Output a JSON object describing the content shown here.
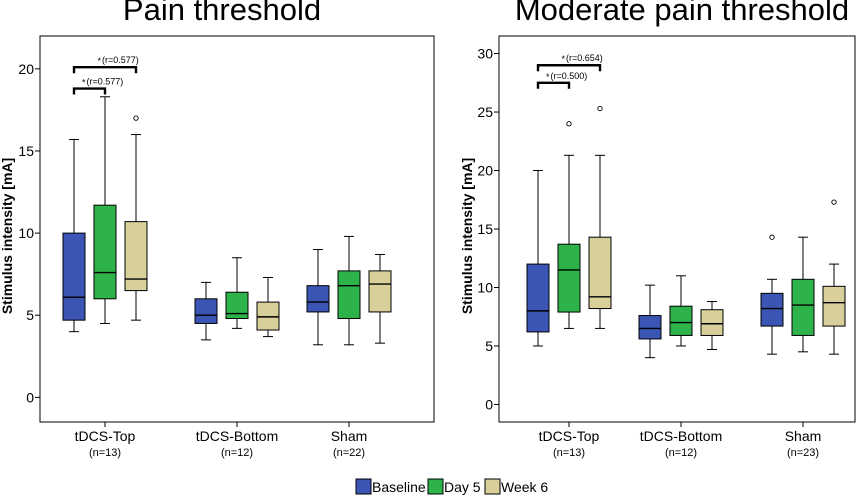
{
  "legend": [
    {
      "name": "Baseline",
      "color": "#3a55b4"
    },
    {
      "name": "Day 5",
      "color": "#2db34a"
    },
    {
      "name": "Week 6",
      "color": "#d9cf9a"
    }
  ],
  "chart_data": [
    {
      "type": "boxplot",
      "title": "Pain threshold",
      "ylabel": "Stimulus intensity [mA]",
      "xlabel": "",
      "ylim": [
        -1.5,
        22
      ],
      "yticks": [
        0,
        5,
        10,
        15,
        20
      ],
      "groups": [
        {
          "label": "tDCS-Top",
          "n": "(n=13)",
          "boxes": [
            {
              "series": "Baseline",
              "whisker_low": 4.0,
              "q1": 4.7,
              "median": 6.1,
              "q3": 10.0,
              "whisker_high": 15.7,
              "outliers": []
            },
            {
              "series": "Day 5",
              "whisker_low": 4.5,
              "q1": 6.0,
              "median": 7.6,
              "q3": 11.7,
              "whisker_high": 18.3,
              "outliers": []
            },
            {
              "series": "Week 6",
              "whisker_low": 4.7,
              "q1": 6.5,
              "median": 7.2,
              "q3": 10.7,
              "whisker_high": 16.0,
              "outliers": [
                17.0
              ]
            }
          ]
        },
        {
          "label": "tDCS-Bottom",
          "n": "(n=12)",
          "boxes": [
            {
              "series": "Baseline",
              "whisker_low": 3.5,
              "q1": 4.5,
              "median": 5.0,
              "q3": 6.0,
              "whisker_high": 7.0,
              "outliers": []
            },
            {
              "series": "Day 5",
              "whisker_low": 4.2,
              "q1": 4.8,
              "median": 5.1,
              "q3": 6.4,
              "whisker_high": 8.5,
              "outliers": []
            },
            {
              "series": "Week 6",
              "whisker_low": 3.7,
              "q1": 4.1,
              "median": 4.9,
              "q3": 5.8,
              "whisker_high": 7.3,
              "outliers": []
            }
          ]
        },
        {
          "label": "Sham",
          "n": "(n=22)",
          "boxes": [
            {
              "series": "Baseline",
              "whisker_low": 3.2,
              "q1": 5.2,
              "median": 5.8,
              "q3": 6.8,
              "whisker_high": 9.0,
              "outliers": []
            },
            {
              "series": "Day 5",
              "whisker_low": 3.2,
              "q1": 4.8,
              "median": 6.8,
              "q3": 7.7,
              "whisker_high": 9.8,
              "outliers": []
            },
            {
              "series": "Week 6",
              "whisker_low": 3.3,
              "q1": 5.2,
              "median": 6.9,
              "q3": 7.7,
              "whisker_high": 8.7,
              "outliers": []
            }
          ]
        }
      ],
      "significance": [
        {
          "label": "(r=0.577)",
          "from_box": 0,
          "to_box": 2,
          "y": 20.1
        },
        {
          "label": "(r=0.577)",
          "from_box": 0,
          "to_box": 1,
          "y": 18.8
        }
      ]
    },
    {
      "type": "boxplot",
      "title": "Moderate pain threshold",
      "ylabel": "Stimulus intensity [mA]",
      "xlabel": "",
      "ylim": [
        -1.5,
        31.5
      ],
      "yticks": [
        0,
        5,
        10,
        15,
        20,
        25,
        30
      ],
      "groups": [
        {
          "label": "tDCS-Top",
          "n": "(n=13)",
          "boxes": [
            {
              "series": "Baseline",
              "whisker_low": 5.0,
              "q1": 6.2,
              "median": 8.0,
              "q3": 12.0,
              "whisker_high": 20.0,
              "outliers": []
            },
            {
              "series": "Day 5",
              "whisker_low": 6.5,
              "q1": 7.9,
              "median": 11.5,
              "q3": 13.7,
              "whisker_high": 21.3,
              "outliers": [
                24.0
              ]
            },
            {
              "series": "Week 6",
              "whisker_low": 6.5,
              "q1": 8.2,
              "median": 9.2,
              "q3": 14.3,
              "whisker_high": 21.3,
              "outliers": [
                25.3
              ]
            }
          ]
        },
        {
          "label": "tDCS-Bottom",
          "n": "(n=12)",
          "boxes": [
            {
              "series": "Baseline",
              "whisker_low": 4.0,
              "q1": 5.6,
              "median": 6.5,
              "q3": 7.6,
              "whisker_high": 10.2,
              "outliers": []
            },
            {
              "series": "Day 5",
              "whisker_low": 5.0,
              "q1": 5.9,
              "median": 7.0,
              "q3": 8.4,
              "whisker_high": 11.0,
              "outliers": []
            },
            {
              "series": "Week 6",
              "whisker_low": 4.7,
              "q1": 5.9,
              "median": 6.9,
              "q3": 8.1,
              "whisker_high": 8.8,
              "outliers": []
            }
          ]
        },
        {
          "label": "Sham",
          "n": "(n=23)",
          "boxes": [
            {
              "series": "Baseline",
              "whisker_low": 4.3,
              "q1": 6.7,
              "median": 8.2,
              "q3": 9.5,
              "whisker_high": 10.7,
              "outliers": [
                14.3
              ]
            },
            {
              "series": "Day 5",
              "whisker_low": 4.5,
              "q1": 5.9,
              "median": 8.5,
              "q3": 10.7,
              "whisker_high": 14.3,
              "outliers": []
            },
            {
              "series": "Week 6",
              "whisker_low": 4.3,
              "q1": 6.7,
              "median": 8.7,
              "q3": 10.1,
              "whisker_high": 12.0,
              "outliers": [
                17.3
              ]
            }
          ]
        }
      ],
      "significance": [
        {
          "label": "(r=0.654)",
          "from_box": 0,
          "to_box": 2,
          "y": 29.0
        },
        {
          "label": "(r=0.500)",
          "from_box": 0,
          "to_box": 1,
          "y": 27.5
        }
      ]
    }
  ]
}
